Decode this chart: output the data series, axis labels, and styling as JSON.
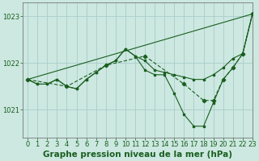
{
  "title": "Graphe pression niveau de la mer (hPa)",
  "background_color": "#cce8e0",
  "grid_color": "#aacccc",
  "line_color": "#1a5e20",
  "xlim": [
    -0.5,
    23
  ],
  "ylim": [
    1020.4,
    1023.3
  ],
  "yticks": [
    1021,
    1022,
    1023
  ],
  "xticks": [
    0,
    1,
    2,
    3,
    4,
    5,
    6,
    7,
    8,
    9,
    10,
    11,
    12,
    13,
    14,
    15,
    16,
    17,
    18,
    19,
    20,
    21,
    22,
    23
  ],
  "line1": {
    "x": [
      0,
      23
    ],
    "y": [
      1021.65,
      1023.05
    ]
  },
  "line2": {
    "x": [
      0,
      1,
      2,
      3,
      4,
      5,
      6,
      7,
      8,
      9,
      10,
      11,
      12,
      13,
      14,
      15,
      16,
      17,
      18,
      19,
      20,
      21,
      22,
      23
    ],
    "y": [
      1021.65,
      1021.55,
      1021.55,
      1021.65,
      1021.5,
      1021.45,
      1021.65,
      1021.8,
      1021.95,
      1022.05,
      1022.3,
      1022.15,
      1022.05,
      1021.85,
      1021.8,
      1021.75,
      1021.7,
      1021.65,
      1021.65,
      1021.75,
      1021.9,
      1022.1,
      1022.2,
      1023.05
    ]
  },
  "line3": {
    "x": [
      0,
      1,
      2,
      3,
      4,
      5,
      6,
      7,
      8,
      9,
      10,
      11,
      12,
      13,
      14,
      15,
      16,
      17,
      18,
      19,
      20,
      21,
      22,
      23
    ],
    "y": [
      1021.65,
      1021.55,
      1021.55,
      1021.65,
      1021.5,
      1021.45,
      1021.65,
      1021.8,
      1021.95,
      1022.05,
      1022.3,
      1022.15,
      1021.85,
      1021.75,
      1021.75,
      1021.35,
      1020.9,
      1020.65,
      1020.65,
      1021.15,
      1021.65,
      1021.9,
      1022.2,
      1023.05
    ]
  },
  "line4": {
    "x": [
      0,
      4,
      8,
      12,
      16,
      18,
      19,
      20,
      21,
      22,
      23
    ],
    "y": [
      1021.65,
      1021.5,
      1021.95,
      1022.15,
      1021.55,
      1021.2,
      1021.2,
      1021.65,
      1021.9,
      1022.2,
      1023.05
    ]
  },
  "title_fontsize": 7.5,
  "tick_fontsize": 6
}
